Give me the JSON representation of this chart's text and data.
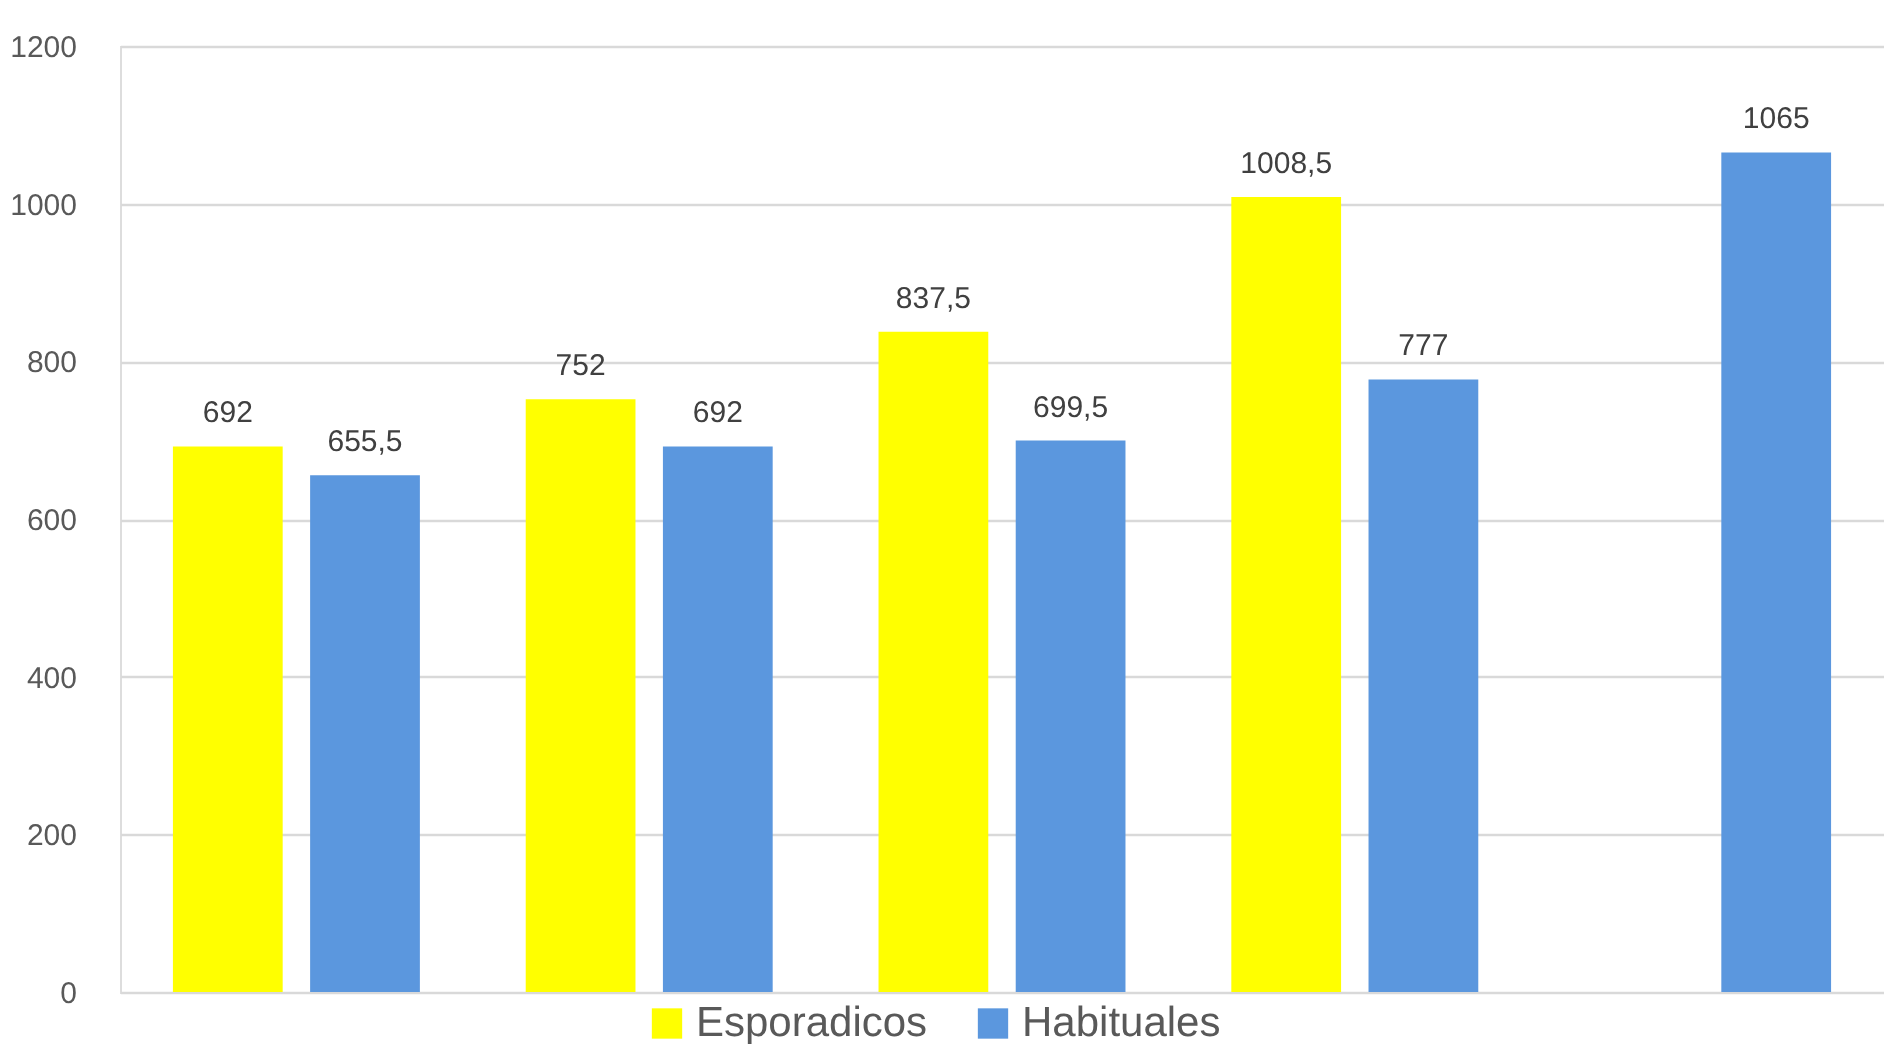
{
  "chart_data": {
    "type": "bar",
    "categories": [
      null,
      null,
      null,
      null,
      null
    ],
    "series": [
      {
        "name": "Esporadicos",
        "color": "#ffff00",
        "values": [
          692,
          752,
          837.5,
          1008.5,
          null
        ],
        "value_labels": [
          "692",
          "752",
          "837,5",
          "1008,5",
          null
        ]
      },
      {
        "name": "Habituales",
        "color": "#5b97de",
        "values": [
          655.5,
          692,
          699.5,
          777,
          1065
        ],
        "value_labels": [
          "655,5",
          "692",
          "699,5",
          "777",
          "1065"
        ]
      }
    ],
    "ylim": [
      0,
      1200
    ],
    "yticks": [
      0,
      200,
      400,
      600,
      800,
      1000,
      1200
    ],
    "grid": "y",
    "legend": "bottom",
    "tick_labels": "y"
  }
}
